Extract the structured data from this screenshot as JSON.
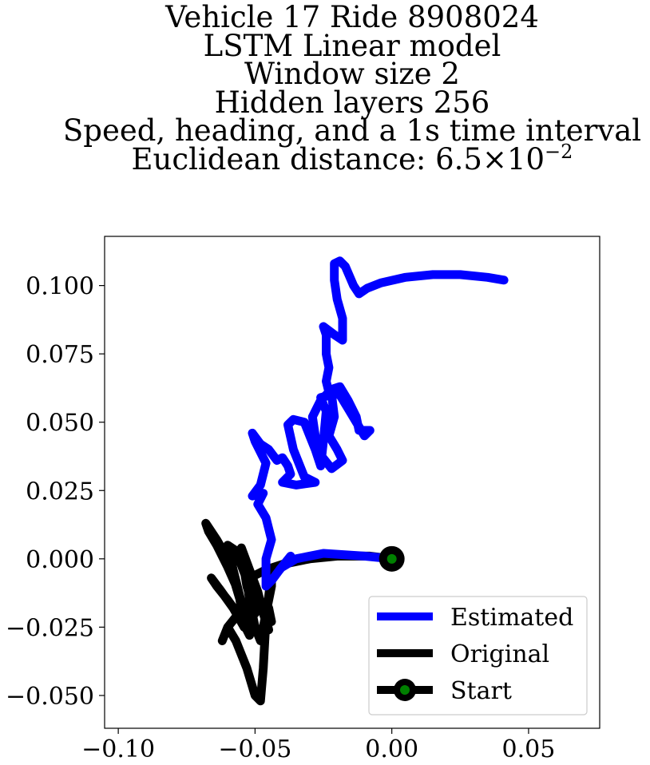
{
  "title_lines": [
    "Vehicle 17 Ride 8908024",
    "LSTM Linear model",
    "Window size 2",
    "Hidden layers 256",
    "Speed, heading, and a 1s time interval",
    "Euclidean distance: 6.5×10"
  ],
  "title_exponent": "−2",
  "chart_data": {
    "type": "line",
    "title": "Vehicle 17 Ride 8908024 LSTM Linear model Window size 2 Hidden layers 256 Speed, heading, and a 1s time interval Euclidean distance: 6.5×10^-2",
    "xlabel": "",
    "ylabel": "",
    "xlim": [
      -0.105,
      0.076
    ],
    "ylim": [
      -0.062,
      0.118
    ],
    "x_ticks": [
      -0.1,
      -0.05,
      0.0,
      0.05
    ],
    "x_tick_labels": [
      "−0.10",
      "−0.05",
      "0.00",
      "0.05"
    ],
    "y_ticks": [
      -0.05,
      -0.025,
      0.0,
      0.025,
      0.05,
      0.075,
      0.1
    ],
    "y_tick_labels": [
      "−0.050",
      "−0.025",
      "0.000",
      "0.025",
      "0.050",
      "0.075",
      "0.100"
    ],
    "grid": false,
    "legend_position": "lower-right",
    "series": [
      {
        "name": "Estimated",
        "color": "#0000ff",
        "points": [
          [
            0.0,
            0.0
          ],
          [
            -0.01,
            0.001
          ],
          [
            -0.025,
            0.002
          ],
          [
            -0.035,
            0.0
          ],
          [
            -0.04,
            -0.003
          ],
          [
            -0.037,
            0.001
          ],
          [
            -0.041,
            -0.004
          ],
          [
            -0.044,
            -0.008
          ],
          [
            -0.046,
            -0.01
          ],
          [
            -0.046,
            0.0
          ],
          [
            -0.044,
            0.007
          ],
          [
            -0.046,
            0.015
          ],
          [
            -0.049,
            0.02
          ],
          [
            -0.047,
            0.024
          ],
          [
            -0.051,
            0.023
          ],
          [
            -0.048,
            0.027
          ],
          [
            -0.046,
            0.035
          ],
          [
            -0.05,
            0.043
          ],
          [
            -0.051,
            0.046
          ],
          [
            -0.048,
            0.042
          ],
          [
            -0.045,
            0.04
          ],
          [
            -0.042,
            0.036
          ],
          [
            -0.04,
            0.037
          ],
          [
            -0.038,
            0.034
          ],
          [
            -0.037,
            0.031
          ],
          [
            -0.04,
            0.028
          ],
          [
            -0.035,
            0.027
          ],
          [
            -0.028,
            0.028
          ],
          [
            -0.032,
            0.03
          ],
          [
            -0.036,
            0.04
          ],
          [
            -0.038,
            0.049
          ],
          [
            -0.036,
            0.051
          ],
          [
            -0.032,
            0.05
          ],
          [
            -0.03,
            0.045
          ],
          [
            -0.028,
            0.04
          ],
          [
            -0.026,
            0.034
          ],
          [
            -0.025,
            0.043
          ],
          [
            -0.024,
            0.054
          ],
          [
            -0.026,
            0.059
          ],
          [
            -0.022,
            0.06
          ],
          [
            -0.021,
            0.052
          ],
          [
            -0.023,
            0.045
          ],
          [
            -0.02,
            0.04
          ],
          [
            -0.018,
            0.036
          ],
          [
            -0.022,
            0.033
          ],
          [
            -0.026,
            0.038
          ],
          [
            -0.028,
            0.045
          ],
          [
            -0.029,
            0.052
          ],
          [
            -0.026,
            0.058
          ],
          [
            -0.022,
            0.062
          ],
          [
            -0.019,
            0.063
          ],
          [
            -0.016,
            0.058
          ],
          [
            -0.013,
            0.052
          ],
          [
            -0.012,
            0.047
          ],
          [
            -0.008,
            0.047
          ],
          [
            -0.01,
            0.045
          ],
          [
            -0.016,
            0.055
          ],
          [
            -0.019,
            0.06
          ],
          [
            -0.023,
            0.061
          ],
          [
            -0.024,
            0.065
          ],
          [
            -0.023,
            0.07
          ],
          [
            -0.024,
            0.075
          ],
          [
            -0.024,
            0.082
          ],
          [
            -0.025,
            0.085
          ],
          [
            -0.021,
            0.082
          ],
          [
            -0.018,
            0.08
          ],
          [
            -0.018,
            0.088
          ],
          [
            -0.02,
            0.095
          ],
          [
            -0.021,
            0.102
          ],
          [
            -0.021,
            0.108
          ],
          [
            -0.019,
            0.109
          ],
          [
            -0.017,
            0.107
          ],
          [
            -0.014,
            0.1
          ],
          [
            -0.012,
            0.097
          ],
          [
            -0.009,
            0.099
          ],
          [
            -0.004,
            0.101
          ],
          [
            0.005,
            0.103
          ],
          [
            0.015,
            0.104
          ],
          [
            0.025,
            0.104
          ],
          [
            0.035,
            0.103
          ],
          [
            0.041,
            0.102
          ]
        ]
      },
      {
        "name": "Original",
        "color": "#000000",
        "points": [
          [
            0.0,
            0.0
          ],
          [
            -0.008,
            0.001
          ],
          [
            -0.02,
            0.001
          ],
          [
            -0.03,
            0.0
          ],
          [
            -0.04,
            -0.002
          ],
          [
            -0.046,
            -0.004
          ],
          [
            -0.05,
            -0.006
          ],
          [
            -0.053,
            -0.008
          ],
          [
            -0.052,
            -0.015
          ],
          [
            -0.05,
            -0.025
          ],
          [
            -0.048,
            -0.03
          ],
          [
            -0.046,
            -0.02
          ],
          [
            -0.044,
            -0.01
          ],
          [
            -0.044,
            -0.005
          ],
          [
            -0.046,
            -0.022
          ],
          [
            -0.047,
            -0.04
          ],
          [
            -0.048,
            -0.052
          ],
          [
            -0.05,
            -0.05
          ],
          [
            -0.053,
            -0.04
          ],
          [
            -0.057,
            -0.03
          ],
          [
            -0.06,
            -0.025
          ],
          [
            -0.062,
            -0.03
          ],
          [
            -0.06,
            -0.025
          ],
          [
            -0.056,
            -0.02
          ],
          [
            -0.052,
            -0.028
          ],
          [
            -0.055,
            -0.022
          ],
          [
            -0.06,
            -0.015
          ],
          [
            -0.064,
            -0.01
          ],
          [
            -0.066,
            -0.007
          ],
          [
            -0.063,
            -0.011
          ],
          [
            -0.058,
            -0.018
          ],
          [
            -0.054,
            -0.025
          ],
          [
            -0.056,
            -0.012
          ],
          [
            -0.06,
            -0.003
          ],
          [
            -0.064,
            0.005
          ],
          [
            -0.067,
            0.01
          ],
          [
            -0.068,
            0.013
          ],
          [
            -0.064,
            0.007
          ],
          [
            -0.06,
            0.0
          ],
          [
            -0.057,
            -0.01
          ],
          [
            -0.054,
            -0.02
          ],
          [
            -0.052,
            -0.028
          ],
          [
            -0.055,
            -0.016
          ],
          [
            -0.058,
            -0.004
          ],
          [
            -0.06,
            0.005
          ],
          [
            -0.057,
            0.003
          ],
          [
            -0.054,
            -0.005
          ],
          [
            -0.051,
            -0.012
          ],
          [
            -0.05,
            -0.02
          ],
          [
            -0.053,
            -0.01
          ],
          [
            -0.055,
            0.002
          ],
          [
            -0.055,
            0.004
          ],
          [
            -0.052,
            -0.004
          ],
          [
            -0.049,
            -0.012
          ],
          [
            -0.047,
            -0.02
          ],
          [
            -0.045,
            -0.026
          ],
          [
            -0.046,
            -0.022
          ],
          [
            -0.045,
            -0.018
          ],
          [
            -0.044,
            -0.023
          ]
        ]
      },
      {
        "name": "Start",
        "color": "#000000",
        "marker_fill": "#008000",
        "points": [
          [
            0.0,
            0.0
          ]
        ]
      }
    ]
  }
}
